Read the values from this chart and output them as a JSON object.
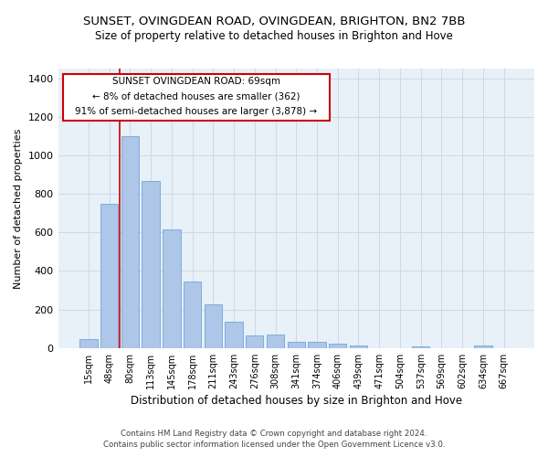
{
  "title": "SUNSET, OVINGDEAN ROAD, OVINGDEAN, BRIGHTON, BN2 7BB",
  "subtitle": "Size of property relative to detached houses in Brighton and Hove",
  "xlabel": "Distribution of detached houses by size in Brighton and Hove",
  "ylabel": "Number of detached properties",
  "footer1": "Contains HM Land Registry data © Crown copyright and database right 2024.",
  "footer2": "Contains public sector information licensed under the Open Government Licence v3.0.",
  "categories": [
    "15sqm",
    "48sqm",
    "80sqm",
    "113sqm",
    "145sqm",
    "178sqm",
    "211sqm",
    "243sqm",
    "276sqm",
    "308sqm",
    "341sqm",
    "374sqm",
    "406sqm",
    "439sqm",
    "471sqm",
    "504sqm",
    "537sqm",
    "569sqm",
    "602sqm",
    "634sqm",
    "667sqm"
  ],
  "values": [
    48,
    750,
    1100,
    865,
    615,
    345,
    225,
    135,
    65,
    68,
    30,
    30,
    22,
    14,
    0,
    0,
    10,
    0,
    0,
    12,
    0
  ],
  "bar_color": "#aec6e8",
  "bar_edgecolor": "#5a9fd4",
  "grid_color": "#d0d8e8",
  "bg_color": "#e8f0f8",
  "annotation_box_color": "#cc0000",
  "annotation_text_line1": "SUNSET OVINGDEAN ROAD: 69sqm",
  "annotation_text_line2": "← 8% of detached houses are smaller (362)",
  "annotation_text_line3": "91% of semi-detached houses are larger (3,878) →",
  "ylim": [
    0,
    1450
  ],
  "yticks": [
    0,
    200,
    400,
    600,
    800,
    1000,
    1200,
    1400
  ]
}
